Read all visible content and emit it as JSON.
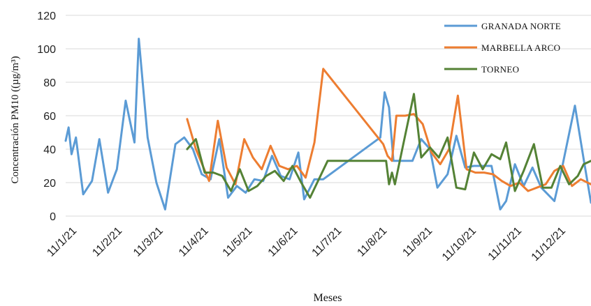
{
  "chart_data": {
    "type": "line",
    "xlabel": "Meses",
    "ylabel": "Concentración PM10 ((µg/m³)",
    "ylim": [
      0,
      120
    ],
    "yticks": [
      0,
      20,
      40,
      60,
      80,
      100,
      120
    ],
    "xlim": [
      "2021-01-06",
      "2021-12-31"
    ],
    "xticks": [
      {
        "date": "2021-01-11",
        "label": "11/1/21"
      },
      {
        "date": "2021-02-11",
        "label": "11/2/21"
      },
      {
        "date": "2021-03-11",
        "label": "11/3/21"
      },
      {
        "date": "2021-04-11",
        "label": "11/4/21"
      },
      {
        "date": "2021-05-11",
        "label": "11/5/21"
      },
      {
        "date": "2021-06-11",
        "label": "11/6/21"
      },
      {
        "date": "2021-07-11",
        "label": "11/7/21"
      },
      {
        "date": "2021-08-11",
        "label": "11/8/21"
      },
      {
        "date": "2021-09-11",
        "label": "11/9/21"
      },
      {
        "date": "2021-10-11",
        "label": "11/10/21"
      },
      {
        "date": "2021-11-11",
        "label": "11/11/21"
      },
      {
        "date": "2021-12-11",
        "label": "11/12/21"
      }
    ],
    "grid": "horizontal",
    "legend_position": "top-right",
    "series": [
      {
        "name": "GRANADA NORTE",
        "color": "#5B9BD5",
        "points": [
          [
            "2021-01-06",
            45
          ],
          [
            "2021-01-08",
            53
          ],
          [
            "2021-01-10",
            37
          ],
          [
            "2021-01-13",
            47
          ],
          [
            "2021-01-18",
            13
          ],
          [
            "2021-01-24",
            21
          ],
          [
            "2021-01-29",
            46
          ],
          [
            "2021-02-04",
            14
          ],
          [
            "2021-02-10",
            28
          ],
          [
            "2021-02-16",
            69
          ],
          [
            "2021-02-22",
            44
          ],
          [
            "2021-02-25",
            106
          ],
          [
            "2021-03-03",
            47
          ],
          [
            "2021-03-09",
            20
          ],
          [
            "2021-03-15",
            4
          ],
          [
            "2021-03-22",
            43
          ],
          [
            "2021-03-28",
            47
          ],
          [
            "2021-04-03",
            40
          ],
          [
            "2021-04-09",
            25
          ],
          [
            "2021-04-15",
            22
          ],
          [
            "2021-04-21",
            46
          ],
          [
            "2021-04-27",
            11
          ],
          [
            "2021-05-03",
            18
          ],
          [
            "2021-05-09",
            14
          ],
          [
            "2021-05-15",
            22
          ],
          [
            "2021-05-21",
            21
          ],
          [
            "2021-05-27",
            36
          ],
          [
            "2021-06-02",
            24
          ],
          [
            "2021-06-08",
            22
          ],
          [
            "2021-06-14",
            38
          ],
          [
            "2021-06-18",
            10
          ],
          [
            "2021-06-25",
            22
          ],
          [
            "2021-07-01",
            22
          ],
          [
            "2021-08-09",
            47
          ],
          [
            "2021-08-12",
            74
          ],
          [
            "2021-08-15",
            65
          ],
          [
            "2021-08-18",
            33
          ],
          [
            "2021-08-24",
            33
          ],
          [
            "2021-08-31",
            33
          ],
          [
            "2021-09-06",
            46
          ],
          [
            "2021-09-12",
            40
          ],
          [
            "2021-09-17",
            17
          ],
          [
            "2021-09-24",
            25
          ],
          [
            "2021-09-30",
            48
          ],
          [
            "2021-10-06",
            29
          ],
          [
            "2021-10-12",
            30
          ],
          [
            "2021-10-18",
            30
          ],
          [
            "2021-10-21",
            30
          ],
          [
            "2021-10-24",
            30
          ],
          [
            "2021-10-30",
            4
          ],
          [
            "2021-11-03",
            9
          ],
          [
            "2021-11-09",
            31
          ],
          [
            "2021-11-15",
            18
          ],
          [
            "2021-11-21",
            29
          ],
          [
            "2021-11-27",
            17
          ],
          [
            "2021-12-06",
            9
          ],
          [
            "2021-12-11",
            28
          ],
          [
            "2021-12-20",
            66
          ],
          [
            "2021-12-26",
            34
          ],
          [
            "2021-12-31",
            8
          ]
        ]
      },
      {
        "name": "MARBELLA ARCO",
        "color": "#ED7D31",
        "points": [
          [
            "2021-03-30",
            58
          ],
          [
            "2021-04-05",
            40
          ],
          [
            "2021-04-14",
            21
          ],
          [
            "2021-04-20",
            57
          ],
          [
            "2021-04-26",
            29
          ],
          [
            "2021-05-02",
            19
          ],
          [
            "2021-05-08",
            46
          ],
          [
            "2021-05-14",
            35
          ],
          [
            "2021-05-20",
            28
          ],
          [
            "2021-05-26",
            42
          ],
          [
            "2021-06-01",
            30
          ],
          [
            "2021-06-07",
            28
          ],
          [
            "2021-06-13",
            30
          ],
          [
            "2021-06-19",
            23
          ],
          [
            "2021-06-25",
            44
          ],
          [
            "2021-07-01",
            88
          ],
          [
            "2021-08-11",
            43
          ],
          [
            "2021-08-14",
            36
          ],
          [
            "2021-08-17",
            33
          ],
          [
            "2021-08-20",
            60
          ],
          [
            "2021-08-26",
            60
          ],
          [
            "2021-09-01",
            61
          ],
          [
            "2021-09-07",
            55
          ],
          [
            "2021-09-13",
            38
          ],
          [
            "2021-09-19",
            31
          ],
          [
            "2021-09-25",
            40
          ],
          [
            "2021-10-01",
            72
          ],
          [
            "2021-10-07",
            28
          ],
          [
            "2021-10-13",
            26
          ],
          [
            "2021-10-19",
            26
          ],
          [
            "2021-10-25",
            25
          ],
          [
            "2021-10-31",
            21
          ],
          [
            "2021-11-06",
            18
          ],
          [
            "2021-11-12",
            20
          ],
          [
            "2021-11-18",
            15
          ],
          [
            "2021-11-24",
            17
          ],
          [
            "2021-11-30",
            19
          ],
          [
            "2021-12-06",
            27
          ],
          [
            "2021-12-12",
            30
          ],
          [
            "2021-12-18",
            18
          ],
          [
            "2021-12-24",
            22
          ],
          [
            "2021-12-31",
            19
          ]
        ]
      },
      {
        "name": "TORNEO",
        "color": "#548235",
        "points": [
          [
            "2021-03-30",
            40
          ],
          [
            "2021-04-05",
            46
          ],
          [
            "2021-04-11",
            26
          ],
          [
            "2021-04-17",
            26
          ],
          [
            "2021-04-23",
            24
          ],
          [
            "2021-04-29",
            15
          ],
          [
            "2021-05-05",
            28
          ],
          [
            "2021-05-11",
            15
          ],
          [
            "2021-05-17",
            18
          ],
          [
            "2021-05-23",
            24
          ],
          [
            "2021-05-29",
            27
          ],
          [
            "2021-06-04",
            21
          ],
          [
            "2021-06-10",
            30
          ],
          [
            "2021-06-16",
            20
          ],
          [
            "2021-06-22",
            11
          ],
          [
            "2021-07-04",
            33
          ],
          [
            "2021-08-13",
            33
          ],
          [
            "2021-08-15",
            19
          ],
          [
            "2021-08-17",
            26
          ],
          [
            "2021-08-19",
            19
          ],
          [
            "2021-08-24",
            40
          ],
          [
            "2021-09-01",
            73
          ],
          [
            "2021-09-06",
            35
          ],
          [
            "2021-09-12",
            41
          ],
          [
            "2021-09-18",
            35
          ],
          [
            "2021-09-24",
            47
          ],
          [
            "2021-09-30",
            17
          ],
          [
            "2021-10-06",
            16
          ],
          [
            "2021-10-12",
            38
          ],
          [
            "2021-10-18",
            28
          ],
          [
            "2021-10-24",
            37
          ],
          [
            "2021-10-30",
            34
          ],
          [
            "2021-11-03",
            44
          ],
          [
            "2021-11-09",
            15
          ],
          [
            "2021-11-15",
            27
          ],
          [
            "2021-11-22",
            43
          ],
          [
            "2021-11-28",
            17
          ],
          [
            "2021-12-04",
            17
          ],
          [
            "2021-12-10",
            30
          ],
          [
            "2021-12-16",
            19
          ],
          [
            "2021-12-22",
            24
          ],
          [
            "2021-12-26",
            31
          ],
          [
            "2021-12-31",
            33
          ]
        ]
      }
    ]
  }
}
